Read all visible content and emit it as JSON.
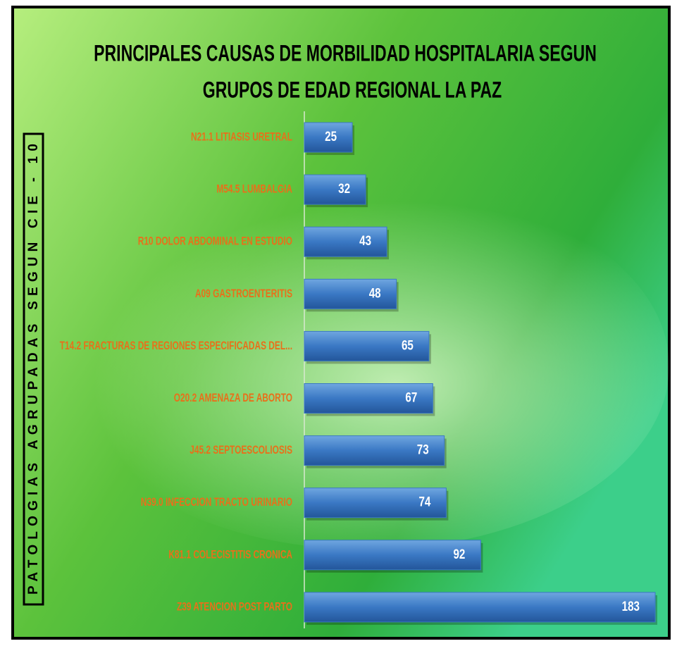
{
  "chart_data": {
    "type": "bar",
    "orientation": "horizontal",
    "title": [
      "PRINCIPALES CAUSAS DE MORBILIDAD HOSPITALARIA SEGUN",
      "GRUPOS DE EDAD REGIONAL LA PAZ"
    ],
    "y_axis_label": "PATOLOGIAS AGRUPADAS SEGUN CIE - 10",
    "categories": [
      "N21.1  LITIASIS URETRAL",
      "M54.5  LUMBALGIA",
      "R10  DOLOR ABDOMINAL EN ESTUDIO",
      "A09  GASTROENTERITIS",
      "T14.2  FRACTURAS DE REGIONES ESPECIFICADAS DEL...",
      "O20.2  AMENAZA DE ABORTO",
      "J45.2  SEPTOESCOLIOSIS",
      "N39.0  INFECCION TRACTO URINARIO",
      "K81.1  COLECISTITIS CRONICA",
      "Z39  ATENCION POST PARTO"
    ],
    "values": [
      25,
      32,
      43,
      48,
      65,
      67,
      73,
      74,
      92,
      183
    ],
    "color": "#3a78c4",
    "label_color": "#e8701a"
  }
}
